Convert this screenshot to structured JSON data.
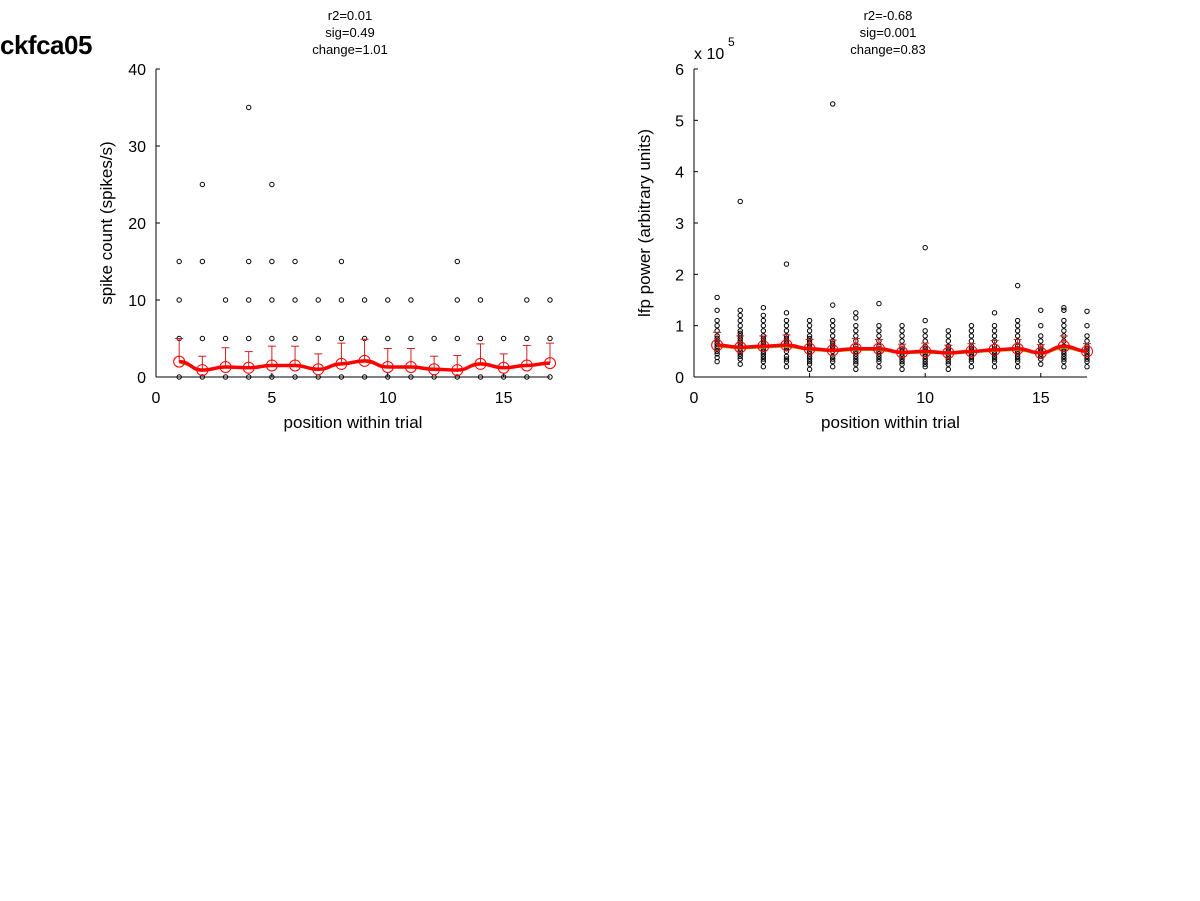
{
  "page": {
    "title": "ckfca05"
  },
  "chart_data": [
    {
      "type": "scatter",
      "stats": [
        "r2=0.01",
        "sig=0.49",
        "change=1.01"
      ],
      "xlabel": "position within trial",
      "ylabel": "spike count (spikes/s)",
      "xlim": [
        0,
        17
      ],
      "ylim": [
        0,
        40
      ],
      "xticks": [
        0,
        5,
        10,
        15
      ],
      "yticks": [
        0,
        10,
        20,
        30,
        40
      ],
      "exponent_label": "",
      "positions": [
        1,
        2,
        3,
        4,
        5,
        6,
        7,
        8,
        9,
        10,
        11,
        12,
        13,
        14,
        15,
        16,
        17
      ],
      "points": {
        "1": [
          0,
          5,
          10,
          15
        ],
        "2": [
          0,
          5,
          15,
          25
        ],
        "3": [
          0,
          5,
          10
        ],
        "4": [
          0,
          5,
          10,
          15,
          35
        ],
        "5": [
          0,
          5,
          10,
          15,
          25
        ],
        "6": [
          0,
          5,
          10,
          15
        ],
        "7": [
          0,
          5,
          10
        ],
        "8": [
          0,
          5,
          10,
          15
        ],
        "9": [
          0,
          5,
          10
        ],
        "10": [
          0,
          5,
          10
        ],
        "11": [
          0,
          5,
          10
        ],
        "12": [
          0,
          5
        ],
        "13": [
          0,
          5,
          10,
          15
        ],
        "14": [
          0,
          5,
          10
        ],
        "15": [
          0,
          5
        ],
        "16": [
          0,
          5,
          10
        ],
        "17": [
          0,
          5,
          10
        ]
      },
      "means": [
        2.0,
        0.9,
        1.3,
        1.2,
        1.5,
        1.5,
        1.0,
        1.7,
        2.1,
        1.3,
        1.3,
        1.0,
        0.9,
        1.7,
        1.2,
        1.5,
        1.8
      ],
      "errors": [
        3.0,
        1.8,
        2.5,
        2.1,
        2.5,
        2.5,
        2.0,
        2.7,
        2.8,
        2.4,
        2.4,
        1.7,
        1.9,
        2.6,
        1.8,
        2.6,
        2.6
      ],
      "colors": {
        "points": "#000000",
        "mean": "#ff0000",
        "errorbar": "#cc2222",
        "trend": "#8db600"
      }
    },
    {
      "type": "scatter",
      "stats": [
        "r2=-0.68",
        "sig=0.001",
        "change=0.83"
      ],
      "xlabel": "position within trial",
      "ylabel": "lfp power (arbitrary units)",
      "xlim": [
        0,
        17
      ],
      "ylim": [
        0,
        6
      ],
      "xticks": [
        0,
        5,
        10,
        15
      ],
      "yticks": [
        0,
        1,
        2,
        3,
        4,
        5,
        6
      ],
      "exponent_label": "x 10",
      "exponent_power": "5",
      "positions": [
        1,
        2,
        3,
        4,
        5,
        6,
        7,
        8,
        9,
        10,
        11,
        12,
        13,
        14,
        15,
        16,
        17
      ],
      "points": {
        "1": [
          0.3,
          0.38,
          0.45,
          0.5,
          0.55,
          0.6,
          0.65,
          0.7,
          0.75,
          0.8,
          0.9,
          1.0,
          1.1,
          1.3,
          1.55
        ],
        "2": [
          0.25,
          0.35,
          0.4,
          0.45,
          0.5,
          0.55,
          0.6,
          0.65,
          0.7,
          0.75,
          0.8,
          0.85,
          0.9,
          1.0,
          1.1,
          1.2,
          1.3,
          3.42
        ],
        "3": [
          0.2,
          0.3,
          0.35,
          0.4,
          0.45,
          0.5,
          0.55,
          0.6,
          0.65,
          0.7,
          0.75,
          0.8,
          0.9,
          1.0,
          1.1,
          1.2,
          1.35
        ],
        "4": [
          0.2,
          0.3,
          0.35,
          0.4,
          0.5,
          0.55,
          0.6,
          0.65,
          0.7,
          0.75,
          0.8,
          0.9,
          1.0,
          1.1,
          1.25,
          2.2
        ],
        "5": [
          0.15,
          0.25,
          0.3,
          0.35,
          0.4,
          0.45,
          0.5,
          0.55,
          0.6,
          0.65,
          0.7,
          0.75,
          0.8,
          0.9,
          1.0,
          1.1
        ],
        "6": [
          0.2,
          0.3,
          0.35,
          0.4,
          0.5,
          0.55,
          0.6,
          0.65,
          0.7,
          0.8,
          0.9,
          1.0,
          1.1,
          1.4,
          5.32
        ],
        "7": [
          0.15,
          0.25,
          0.3,
          0.35,
          0.4,
          0.45,
          0.5,
          0.55,
          0.6,
          0.7,
          0.8,
          0.9,
          1.0,
          1.15,
          1.25
        ],
        "8": [
          0.2,
          0.3,
          0.35,
          0.4,
          0.45,
          0.5,
          0.55,
          0.6,
          0.7,
          0.8,
          0.9,
          1.0,
          1.43
        ],
        "9": [
          0.15,
          0.25,
          0.3,
          0.35,
          0.4,
          0.45,
          0.5,
          0.55,
          0.6,
          0.7,
          0.8,
          0.9,
          1.0
        ],
        "10": [
          0.2,
          0.25,
          0.3,
          0.35,
          0.4,
          0.45,
          0.5,
          0.55,
          0.6,
          0.7,
          0.8,
          0.9,
          1.1,
          2.52
        ],
        "11": [
          0.15,
          0.25,
          0.3,
          0.35,
          0.4,
          0.45,
          0.5,
          0.55,
          0.6,
          0.7,
          0.8,
          0.9
        ],
        "12": [
          0.2,
          0.3,
          0.35,
          0.4,
          0.45,
          0.5,
          0.55,
          0.6,
          0.7,
          0.8,
          0.9,
          1.0
        ],
        "13": [
          0.2,
          0.3,
          0.35,
          0.4,
          0.45,
          0.5,
          0.55,
          0.6,
          0.7,
          0.8,
          0.9,
          1.0,
          1.25
        ],
        "14": [
          0.2,
          0.3,
          0.35,
          0.4,
          0.45,
          0.5,
          0.55,
          0.6,
          0.7,
          0.8,
          0.9,
          1.0,
          1.1,
          1.78
        ],
        "15": [
          0.25,
          0.35,
          0.4,
          0.45,
          0.5,
          0.55,
          0.6,
          0.7,
          0.8,
          1.0,
          1.3
        ],
        "16": [
          0.2,
          0.3,
          0.35,
          0.4,
          0.45,
          0.5,
          0.55,
          0.6,
          0.7,
          0.8,
          0.9,
          1.0,
          1.1,
          1.3,
          1.35
        ],
        "17": [
          0.2,
          0.3,
          0.35,
          0.4,
          0.45,
          0.5,
          0.55,
          0.6,
          0.7,
          0.8,
          1.0,
          1.28
        ]
      },
      "means": [
        0.62,
        0.58,
        0.6,
        0.62,
        0.55,
        0.52,
        0.55,
        0.55,
        0.48,
        0.5,
        0.47,
        0.5,
        0.53,
        0.55,
        0.47,
        0.6,
        0.5
      ],
      "errors": [
        0.25,
        0.22,
        0.2,
        0.2,
        0.18,
        0.2,
        0.2,
        0.18,
        0.16,
        0.16,
        0.15,
        0.15,
        0.18,
        0.18,
        0.16,
        0.2,
        0.15
      ],
      "colors": {
        "points": "#000000",
        "mean": "#ff0000",
        "errorbar": "#cc2222",
        "trend": "#8db600"
      }
    }
  ]
}
